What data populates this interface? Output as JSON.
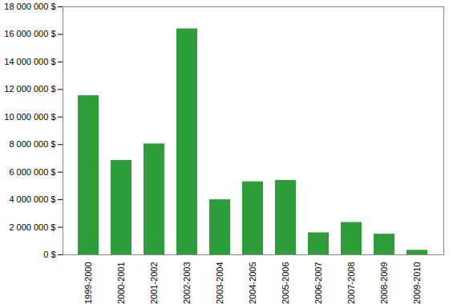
{
  "chart_data": {
    "type": "bar",
    "categories": [
      "1999-2000",
      "2000-2001",
      "2001-2002",
      "2002-2003",
      "2003-2004",
      "2004-2005",
      "2005-2006",
      "2006-2007",
      "2007-2008",
      "2008-2009",
      "2009-2010"
    ],
    "values": [
      11550000,
      6850000,
      8050000,
      16400000,
      4000000,
      5300000,
      5400000,
      1600000,
      2350000,
      1500000,
      330000
    ],
    "color": "#2e9e3a",
    "ylim": [
      0,
      18000000
    ],
    "yticks": [
      {
        "value": 0,
        "label": "0 $"
      },
      {
        "value": 2000000,
        "label": "2 000 000 $"
      },
      {
        "value": 4000000,
        "label": "4 000 000 $"
      },
      {
        "value": 6000000,
        "label": "6 000 000 $"
      },
      {
        "value": 8000000,
        "label": "8 000 000 $"
      },
      {
        "value": 10000000,
        "label": "10 000 000 $"
      },
      {
        "value": 12000000,
        "label": "12 000 000 $"
      },
      {
        "value": 14000000,
        "label": "14 000 000 $"
      },
      {
        "value": 16000000,
        "label": "16 000 000 $"
      },
      {
        "value": 18000000,
        "label": "18 000 000 $"
      }
    ],
    "grid": false
  }
}
